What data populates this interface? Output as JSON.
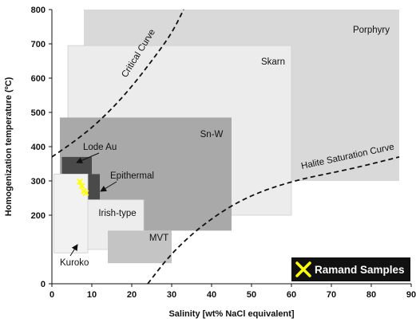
{
  "chart_data": {
    "type": "scatter",
    "title": "",
    "xlabel": "Salinity [wt% NaCl equivalent]",
    "ylabel": "Homogenization temperature (ºC)",
    "xlim": [
      0,
      90
    ],
    "ylim": [
      0,
      800
    ],
    "y_scale_note": "nonlinear between 0 and 200",
    "grid": false,
    "x_ticks": [
      "0",
      "10",
      "20",
      "30",
      "40",
      "50",
      "60",
      "70",
      "80",
      "90"
    ],
    "y_ticks": [
      "0",
      "200",
      "300",
      "400",
      "500",
      "600",
      "700",
      "800"
    ],
    "regions": [
      {
        "name": "Porphyry",
        "x": [
          8,
          87
        ],
        "y": [
          300,
          800
        ],
        "color": "#d9d9d9"
      },
      {
        "name": "Skarn",
        "x": [
          4,
          60
        ],
        "y": [
          200,
          695
        ],
        "color": "#ececec"
      },
      {
        "name": "Sn-W",
        "x": [
          2,
          45
        ],
        "y": [
          155,
          485
        ],
        "color": "#a9a9a9"
      },
      {
        "name": "Lode Au",
        "x": [
          2.5,
          10
        ],
        "y": [
          320,
          370
        ],
        "color": "#4a4a4a"
      },
      {
        "name": "Epithermal",
        "x": [
          7,
          12
        ],
        "y": [
          240,
          320
        ],
        "color": "#4a4a4a"
      },
      {
        "name": "Irish-type",
        "x": [
          9,
          23
        ],
        "y": [
          100,
          245
        ],
        "color": "#ededed"
      },
      {
        "name": "MVT",
        "x": [
          14,
          30
        ],
        "y": [
          60,
          155
        ],
        "color": "#c4c4c4"
      },
      {
        "name": "Kuroko",
        "x": [
          0.5,
          9
        ],
        "y": [
          90,
          320
        ],
        "color": "#f2f2f2"
      }
    ],
    "region_arrow_labels": [
      "Lode Au",
      "Epithermal",
      "Kuroko"
    ],
    "curves": [
      {
        "name": "Critical Curve",
        "style": "dashed",
        "points": [
          [
            0,
            370
          ],
          [
            5,
            410
          ],
          [
            10,
            455
          ],
          [
            15,
            510
          ],
          [
            20,
            575
          ],
          [
            25,
            650
          ],
          [
            30,
            730
          ],
          [
            33,
            800
          ]
        ]
      },
      {
        "name": "Halite Saturation Curve",
        "style": "dashed",
        "points": [
          [
            24,
            0
          ],
          [
            30,
            90
          ],
          [
            38,
            175
          ],
          [
            48,
            250
          ],
          [
            60,
            300
          ],
          [
            75,
            335
          ],
          [
            87,
            370
          ]
        ]
      }
    ],
    "series": [
      {
        "name": "Ramand Samples",
        "marker": "x",
        "color": "#ffff00",
        "x": [
          7,
          7.5,
          8,
          8.5
        ],
        "y": [
          298,
          285,
          270,
          265
        ]
      }
    ],
    "legend": {
      "placement": "bottom-right",
      "label": "Ramand Samples"
    }
  }
}
